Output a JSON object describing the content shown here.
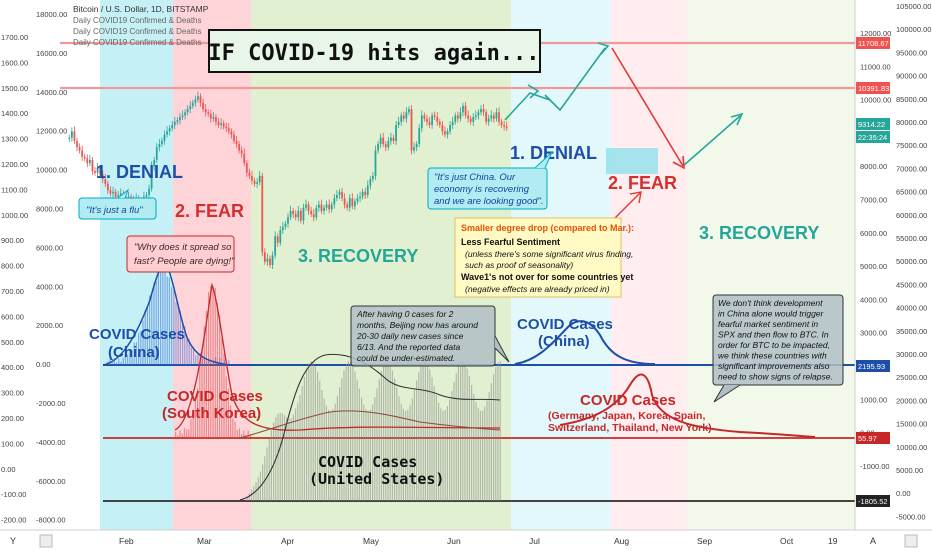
{
  "chart_info": {
    "title_lines": [
      "Bitcoin / U.S. Dollar, 1D, BITSTAMP",
      "Daily COVID19 Confirmed & Deaths",
      "Daily COVID19 Confirmed & Deaths",
      "Daily COVID19 Confirmed & Deaths"
    ]
  },
  "headline": "IF COVID-19 hits again...",
  "left_axis_1": [
    "1700.00",
    "1600.00",
    "1500.00",
    "1400.00",
    "1300.00",
    "1200.00",
    "1100.00",
    "1000.00",
    "900.00",
    "800.00",
    "700.00",
    "600.00",
    "500.00",
    "400.00",
    "300.00",
    "200.00",
    "100.00",
    "0.00",
    "-100.00",
    "-200.00"
  ],
  "left_axis_2": [
    "18000.00",
    "16000.00",
    "14000.00",
    "12000.00",
    "10000.00",
    "8000.00",
    "6000.00",
    "4000.00",
    "2000.00",
    "0.00",
    "-2000.00",
    "-4000.00",
    "-6000.00",
    "-8000.00"
  ],
  "right_axis_1": [
    "12000.00",
    "11000.00",
    "10000.00",
    "9000.00",
    "8000.00",
    "7000.00",
    "6000.00",
    "5000.00",
    "4000.00",
    "3000.00",
    "2000.00",
    "1000.00",
    "0.00",
    "-1000.00",
    "-2000.00"
  ],
  "right_axis_2": [
    "105000.00",
    "100000.00",
    "95000.00",
    "90000.00",
    "85000.00",
    "80000.00",
    "75000.00",
    "70000.00",
    "65000.00",
    "60000.00",
    "55000.00",
    "50000.00",
    "45000.00",
    "40000.00",
    "35000.00",
    "30000.00",
    "25000.00",
    "20000.00",
    "15000.00",
    "10000.00",
    "5000.00",
    "0.00",
    "-5000.00"
  ],
  "price_tags": [
    {
      "text": "11708.67",
      "color": "#ef5350"
    },
    {
      "text": "10391.83",
      "color": "#ef5350"
    },
    {
      "text": "9314.22",
      "color": "#26a69a"
    },
    {
      "text": "22:35:24",
      "color": "#26a69a"
    },
    {
      "text": "2195.93",
      "color": "#1e4fa8"
    },
    {
      "text": "55.97",
      "color": "#c62828"
    },
    {
      "text": "-1805.52",
      "color": "#222222"
    }
  ],
  "x_axis": {
    "labels": [
      "Feb",
      "Mar",
      "Apr",
      "May",
      "Jun",
      "Jul",
      "Aug",
      "Sep",
      "Oct",
      "19"
    ],
    "corner_left": "Y",
    "corner_right": "A"
  },
  "phase_labels": {
    "denial_1": "1. DENIAL",
    "fear_1": "2. FEAR",
    "recovery_1": "3. RECOVERY",
    "denial_2": "1. DENIAL",
    "fear_2": "2. FEAR",
    "recovery_2": "3. RECOVERY"
  },
  "callouts": {
    "flu": "\"It's just a flu\"",
    "spread_1": "\"Why does it spread so",
    "spread_2": "fast? People are dying!\"",
    "china_1": "\"It's just China. Our",
    "china_2": "economy is recovering",
    "china_3": "and we are looking good\".",
    "beijing": [
      "After having 0 cases for 2",
      "months, Beijing now has around",
      "20-30 daily new cases since",
      "6/13. And the reported data",
      "could be under-estimated."
    ],
    "development": [
      "We don't think development",
      "in China alone would trigger",
      "fearful market sentiment in",
      "SPX and then flow to BTC. In",
      "order for BTC to be impacted,",
      "we think these countries with",
      "significant improvements also",
      "need to show signs of relapse."
    ]
  },
  "info_box": {
    "heading": "Smaller degree drop (compared to Mar.):",
    "line1": "Less Fearful Sentiment",
    "line2": "(unless there's some significant virus finding,",
    "line3": "such as proof of seasonality)",
    "line4": "Wave1's not over for some countries yet",
    "line5": "(negative effects are already priced in)"
  },
  "covid_labels": {
    "china_a": "COVID Cases",
    "china_b": "(China)",
    "korea_a": "COVID Cases",
    "korea_b": "(South Korea)",
    "us_a": "COVID Cases",
    "us_b": "(United States)",
    "china2_a": "COVID Cases",
    "china2_b": "(China)",
    "multi_a": "COVID Cases",
    "multi_b": "(Germany, Japan, Korea, Spain,",
    "multi_c": "Switzerland, Thailand, New York)"
  },
  "colors": {
    "up": "#26a69a",
    "down": "#ef5350",
    "denial": "#b2ebf2",
    "fear": "#ffcdd2",
    "recovery": "#dcedc8",
    "china": "#1e4fa8",
    "korea": "#c62828",
    "us": "#2b2b2b"
  },
  "chart_data": {
    "type": "line",
    "series": [
      {
        "values": [
          9000,
          9200,
          8900,
          8700,
          8600,
          8400,
          8350,
          8200,
          8300,
          7950,
          7900,
          8050,
          7850,
          7700,
          7550,
          7350,
          7250,
          7300,
          7150,
          7200,
          7250,
          7100,
          7050,
          7150,
          7000,
          7050,
          7100,
          6950,
          6900,
          7150,
          7200,
          7400,
          8100,
          8300,
          8700,
          8800,
          8900,
          9100,
          9200,
          9300,
          9400,
          9500,
          9550,
          9650,
          9700,
          9800,
          9900,
          10000,
          10100,
          10200,
          10300,
          10100,
          9900,
          9800,
          9750,
          9600,
          9650,
          9500,
          9400,
          9450,
          9350,
          9300,
          9200,
          9100,
          8900,
          8800,
          8600,
          8500,
          8200,
          7900,
          7800,
          7650,
          7550,
          7600,
          7800,
          5400,
          5100,
          5200,
          5000,
          5300,
          5900,
          5700,
          6100,
          6200,
          6300,
          6500,
          6700,
          6600,
          6500,
          6700,
          6400,
          6800,
          6900,
          6700,
          6600,
          6500,
          6800,
          6900,
          6700,
          6800,
          6900,
          6750,
          6900,
          7100,
          7200,
          7300,
          7100,
          6900,
          6800,
          7100,
          6850,
          7000,
          7100,
          7150,
          7300,
          7200,
          7500,
          7700,
          7800,
          8600,
          8800,
          9000,
          8800,
          8700,
          8900,
          9000,
          8900,
          9400,
          9500,
          9700,
          9600,
          9800,
          9900,
          8600,
          8700,
          8800,
          9300,
          9700,
          9600,
          9500,
          9400,
          9700,
          9650,
          9500,
          9400,
          9200,
          9100,
          9200,
          9400,
          9500,
          9700,
          9600,
          9800,
          10000,
          9700,
          9600,
          9500,
          9650,
          9700,
          9800,
          9900,
          9800,
          9500,
          9600,
          9700,
          9600,
          9800,
          9500,
          9400,
          9350,
          9300
        ]
      }
    ]
  }
}
